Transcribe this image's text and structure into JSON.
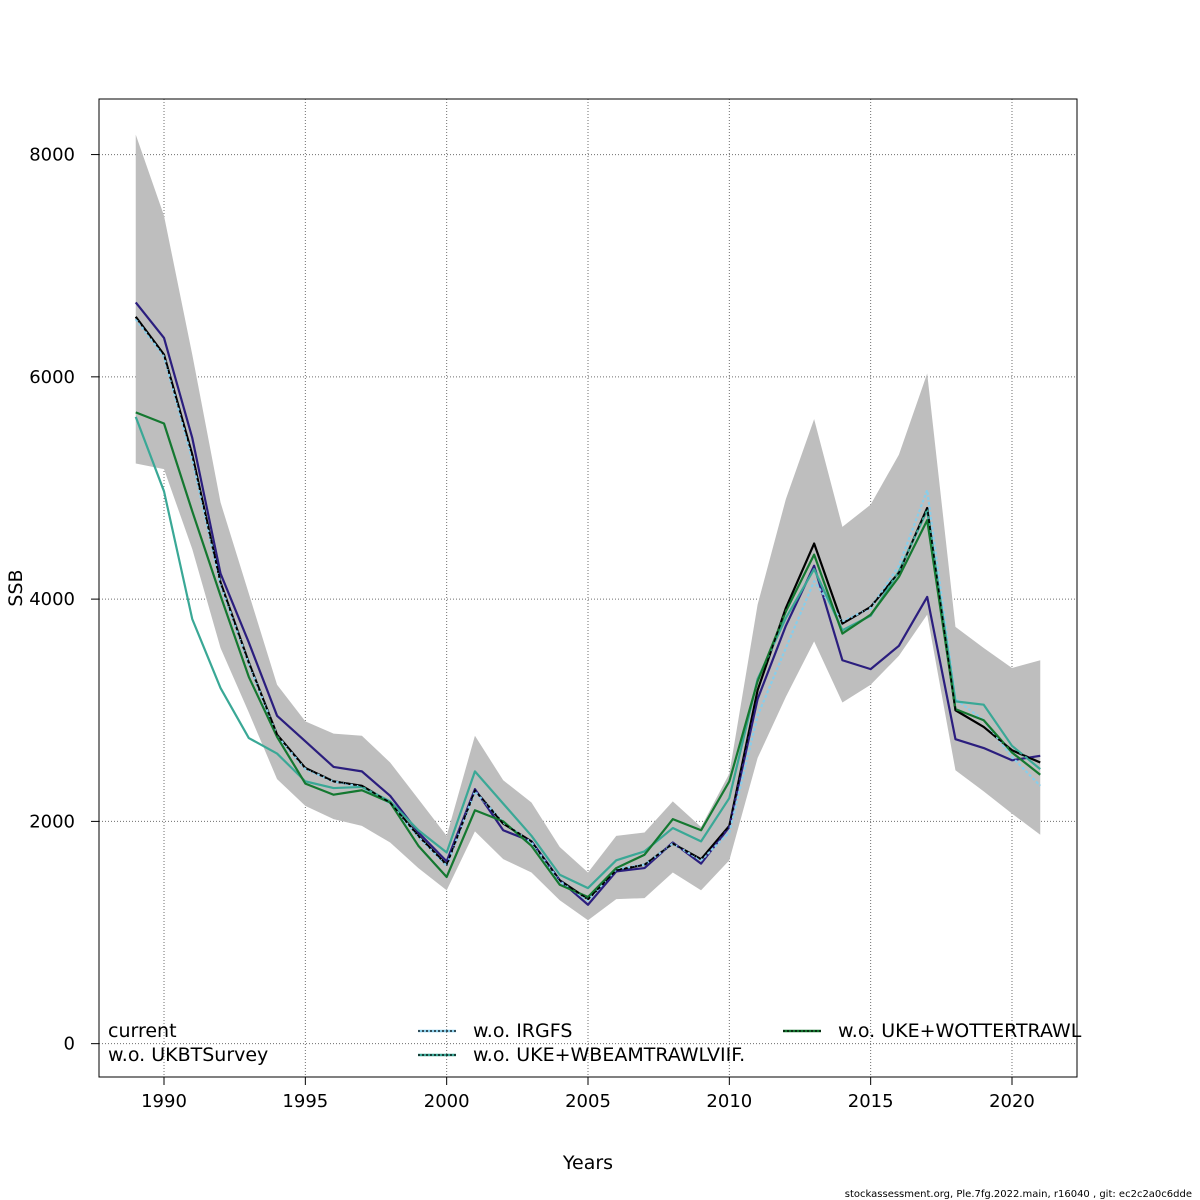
{
  "chart_data": {
    "type": "line",
    "title": "",
    "xlabel": "Years",
    "ylabel": "SSB",
    "xlim": [
      1987.7,
      2022.3
    ],
    "ylim": [
      -300,
      8500
    ],
    "x_ticks": [
      1990,
      1995,
      2000,
      2005,
      2010,
      2015,
      2020
    ],
    "y_ticks": [
      0,
      2000,
      4000,
      6000,
      8000
    ],
    "grid": true,
    "x": [
      1989,
      1990,
      1991,
      1992,
      1993,
      1994,
      1995,
      1996,
      1997,
      1998,
      1999,
      2000,
      2001,
      2002,
      2003,
      2004,
      2005,
      2006,
      2007,
      2008,
      2009,
      2010,
      2011,
      2012,
      2013,
      2014,
      2015,
      2016,
      2017,
      2018,
      2019,
      2020,
      2021
    ],
    "confidence_band": {
      "name": "current CI",
      "color": "#bebebe",
      "upper": [
        8180,
        7450,
        6200,
        4870,
        4050,
        3230,
        2900,
        2790,
        2770,
        2530,
        2200,
        1870,
        2770,
        2370,
        2170,
        1770,
        1540,
        1870,
        1900,
        2180,
        1950,
        2430,
        3950,
        4900,
        5620,
        4650,
        4850,
        5300,
        6030,
        3750,
        3560,
        3380,
        3450
      ],
      "lower": [
        5220,
        5170,
        4450,
        3560,
        2980,
        2380,
        2140,
        2020,
        1960,
        1810,
        1580,
        1380,
        1910,
        1660,
        1540,
        1290,
        1110,
        1300,
        1310,
        1540,
        1380,
        1650,
        2570,
        3120,
        3620,
        3070,
        3230,
        3490,
        3860,
        2460,
        2270,
        2070,
        1880
      ]
    },
    "series": [
      {
        "name": "current",
        "color": "#000000",
        "dash": "none",
        "values": [
          6540,
          6200,
          5300,
          4150,
          3430,
          2780,
          2480,
          2360,
          2320,
          2170,
          1870,
          1610,
          2280,
          1980,
          1820,
          1470,
          1300,
          1560,
          1610,
          1800,
          1660,
          1960,
          3180,
          3920,
          4500,
          3780,
          3930,
          4240,
          4820,
          3000,
          2850,
          2640,
          2530
        ]
      },
      {
        "name": "w.o. UKBTSurvey",
        "color": "#2b1e7e",
        "dash": "none",
        "values": [
          6670,
          6350,
          5450,
          4230,
          3610,
          2950,
          2720,
          2490,
          2450,
          2230,
          1900,
          1640,
          2290,
          1920,
          1820,
          1470,
          1250,
          1550,
          1580,
          1810,
          1620,
          1950,
          3100,
          3760,
          4300,
          3450,
          3370,
          3580,
          4020,
          2740,
          2660,
          2550,
          2590
        ]
      },
      {
        "name": "w.o. IRGFS",
        "color": "#87ceeb",
        "dash": "3,2",
        "values": [
          6520,
          6180,
          5250,
          4130,
          3420,
          2770,
          2470,
          2360,
          2310,
          2160,
          1860,
          1600,
          2270,
          1990,
          1810,
          1460,
          1290,
          1570,
          1610,
          1800,
          1650,
          1900,
          2950,
          3560,
          4160,
          3800,
          3920,
          4300,
          4980,
          3100,
          2910,
          2580,
          2320
        ]
      },
      {
        "name": "w.o. UKE+WBEAMTRAWLVIIF.",
        "color": "#3aa896",
        "dash": "none",
        "values": [
          5640,
          4970,
          3820,
          3200,
          2750,
          2610,
          2360,
          2300,
          2310,
          2180,
          1920,
          1720,
          2450,
          2160,
          1870,
          1520,
          1400,
          1650,
          1730,
          1940,
          1820,
          2210,
          3280,
          3830,
          4270,
          3720,
          3850,
          4250,
          4800,
          3080,
          3050,
          2680,
          2470
        ]
      },
      {
        "name": "w.o. UKE+WOTTERTRAWL",
        "color": "#147830",
        "dash": "none",
        "values": [
          5680,
          5580,
          4790,
          4030,
          3300,
          2760,
          2340,
          2240,
          2280,
          2170,
          1780,
          1500,
          2100,
          2000,
          1780,
          1430,
          1320,
          1580,
          1700,
          2020,
          1920,
          2360,
          3260,
          3890,
          4400,
          3690,
          3860,
          4200,
          4710,
          3010,
          2910,
          2620,
          2420
        ]
      },
      {
        "name": "current overlay",
        "color": "#000000",
        "dash": "4,3",
        "overlay_of": "current"
      }
    ],
    "legend": {
      "placement": "bottom",
      "entries": [
        {
          "label": "current",
          "color": "#000000",
          "style": "none"
        },
        {
          "label": "w.o. UKBTSurvey",
          "color": "#2b1e7e",
          "style": "none"
        },
        {
          "label": "w.o. IRGFS",
          "color": "#87ceeb",
          "style": "dotted-black"
        },
        {
          "label": "w.o. UKE+WBEAMTRAWLVIIF.",
          "color": "#3aa896",
          "style": "dotted-black"
        },
        {
          "label": "w.o. UKE+WOTTERTRAWL",
          "color": "#147830",
          "style": "dotted-black"
        }
      ]
    }
  },
  "footer": "stockassessment.org, Ple.7fg.2022.main, r16040 , git: ec2c2a0c6dde"
}
